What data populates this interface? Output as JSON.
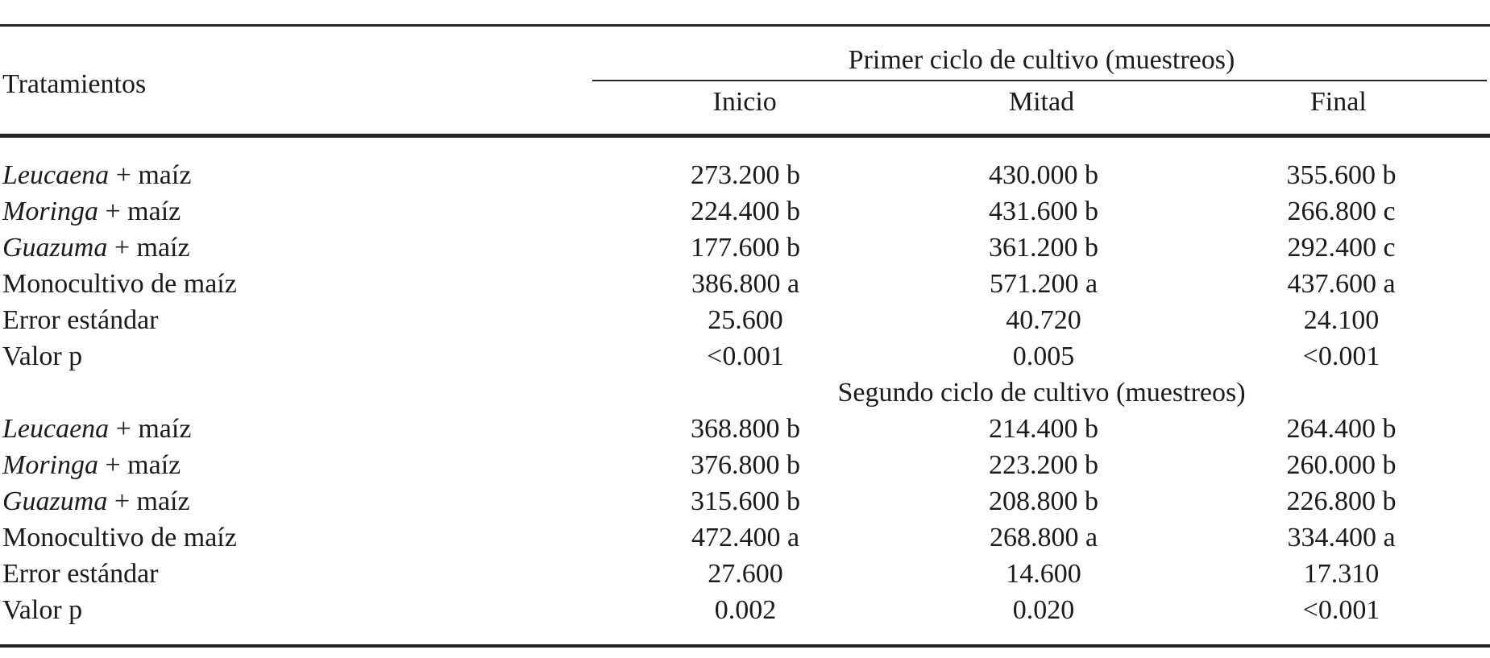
{
  "page": {
    "background": "#ffffff",
    "text_color": "#1b1b1b",
    "rule_color": "#242424"
  },
  "table": {
    "row_header_title": "Tratamientos",
    "sub_columns": [
      "Inicio",
      "Mitad",
      "Final"
    ],
    "sections": [
      {
        "title": "Primer ciclo de cultivo (muestreos)",
        "rows": [
          {
            "genus": "Leucaena",
            "label_rest": " + maíz",
            "values": [
              "273.200 b",
              "430.000 b",
              "355.600 b"
            ]
          },
          {
            "genus": "Moringa",
            "label_rest": " + maíz",
            "values": [
              "224.400 b",
              "431.600 b",
              "266.800 c"
            ]
          },
          {
            "genus": "Guazuma",
            "label_rest": " + maíz",
            "values": [
              "177.600 b",
              "361.200 b",
              "292.400 c"
            ]
          },
          {
            "genus": "",
            "label_rest": "Monocultivo de maíz",
            "values": [
              "386.800 a",
              "571.200 a",
              "437.600 a"
            ]
          },
          {
            "genus": "",
            "label_rest": "Error estándar",
            "values": [
              "25.600",
              "40.720",
              "24.100"
            ]
          },
          {
            "genus": "",
            "label_rest": "Valor p",
            "values": [
              "<0.001",
              "0.005",
              "<0.001"
            ]
          }
        ]
      },
      {
        "title": "Segundo ciclo de cultivo (muestreos)",
        "rows": [
          {
            "genus": "Leucaena",
            "label_rest": " + maíz",
            "values": [
              "368.800 b",
              "214.400 b",
              "264.400 b"
            ]
          },
          {
            "genus": "Moringa",
            "label_rest": " + maíz",
            "values": [
              "376.800 b",
              "223.200 b",
              "260.000 b"
            ]
          },
          {
            "genus": "Guazuma",
            "label_rest": " + maíz",
            "values": [
              "315.600 b",
              "208.800 b",
              "226.800 b"
            ]
          },
          {
            "genus": "",
            "label_rest": "Monocultivo de maíz",
            "values": [
              "472.400 a",
              "268.800 a",
              "334.400 a"
            ]
          },
          {
            "genus": "",
            "label_rest": "Error estándar",
            "values": [
              "27.600",
              "14.600",
              "17.310"
            ]
          },
          {
            "genus": "",
            "label_rest": "Valor p",
            "values": [
              "0.002",
              "0.020",
              "<0.001"
            ]
          }
        ]
      }
    ]
  }
}
